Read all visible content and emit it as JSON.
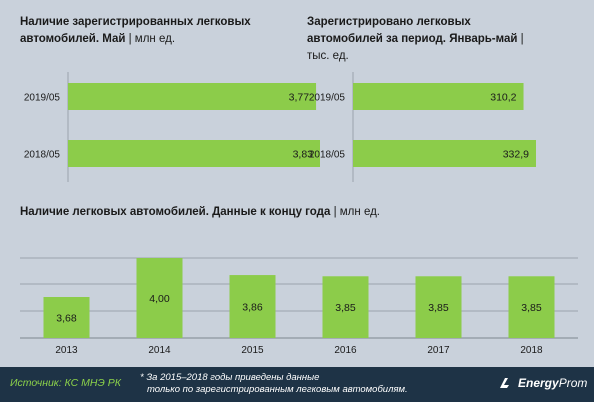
{
  "chart_data": [
    {
      "type": "bar",
      "orientation": "horizontal",
      "title": "Наличие зарегистрированных легковых автомобилей.  Май",
      "unit": "| млн ед.",
      "categories": [
        "2019/05",
        "2018/05"
      ],
      "values": [
        3.77,
        3.83
      ],
      "labels": [
        "3,77",
        "3,83"
      ],
      "bar_color": "#8ccc4a"
    },
    {
      "type": "bar",
      "orientation": "horizontal",
      "title": "Зарегистрировано  легковых автомобилей за период. Январь-май",
      "unit": "|  тыс. ед.",
      "categories": [
        "2019/05",
        "2018/05"
      ],
      "values": [
        310.2,
        332.9
      ],
      "labels": [
        "310,2",
        "332,9"
      ],
      "bar_color": "#8ccc4a"
    },
    {
      "type": "bar",
      "orientation": "vertical",
      "title": "Наличие легковых автомобилей. Данные к концу года",
      "unit": "| млн ед.",
      "categories": [
        "2013",
        "2014",
        "2015",
        "2016",
        "2017",
        "2018"
      ],
      "values": [
        3.68,
        4.0,
        3.86,
        3.85,
        3.85,
        3.85
      ],
      "labels": [
        "3,68",
        "4,00",
        "3,86",
        "3,85",
        "3,85",
        "3,85"
      ],
      "bar_color": "#8ccc4a",
      "grid": true
    }
  ],
  "footer": {
    "source": "Источник: КС МНЭ РК",
    "note_line1": "* За 2015–2018 годы приведены данные",
    "note_line2": "только по зарегистрированным легковым автомобилям.",
    "logo_text_1": "Energy",
    "logo_text_2": "Prom",
    "logo_icon": "energyprom-logo-icon"
  }
}
